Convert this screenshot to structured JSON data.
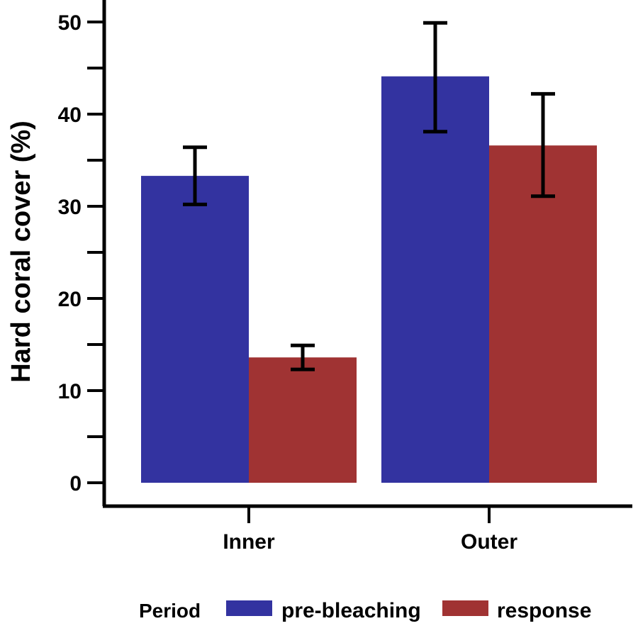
{
  "chart_data": {
    "type": "bar",
    "title": "",
    "xlabel": "",
    "ylabel": "Hard coral cover (%)",
    "ylim": [
      0,
      50
    ],
    "yticks_major": [
      0,
      10,
      20,
      30,
      40,
      50
    ],
    "yticks_minor": [
      5,
      15,
      25,
      35,
      45
    ],
    "categories": [
      "Inner",
      "Outer"
    ],
    "legend": {
      "title": "Period",
      "position": "bottom"
    },
    "grid": false,
    "series": [
      {
        "name": "pre-bleaching",
        "color": "#3333a0",
        "values": [
          33.3,
          44.1
        ],
        "error_low": [
          30.2,
          38.1
        ],
        "error_high": [
          36.4,
          49.9
        ]
      },
      {
        "name": "response",
        "color": "#a03333",
        "values": [
          13.6,
          36.6
        ],
        "error_low": [
          12.3,
          31.1
        ],
        "error_high": [
          14.9,
          42.2
        ]
      }
    ]
  }
}
